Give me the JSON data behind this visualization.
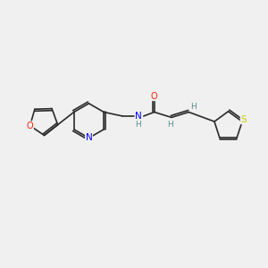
{
  "background_color": "#f0f0f0",
  "bond_color": "#2a2a2a",
  "atom_colors": {
    "N": "#0000ff",
    "O_furan": "#ff2200",
    "O_carbonyl": "#ff2200",
    "S": "#cccc00",
    "H": "#5a8a8a",
    "C": "#2a2a2a"
  },
  "figsize": [
    3.0,
    3.0
  ],
  "dpi": 100
}
